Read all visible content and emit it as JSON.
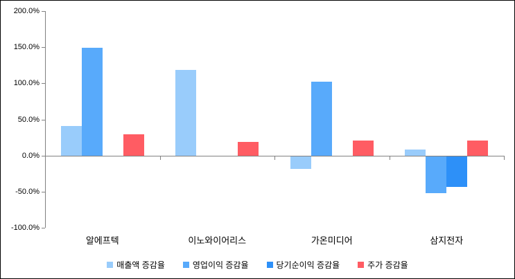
{
  "chart_data": {
    "type": "bar",
    "title": "",
    "xlabel": "",
    "ylabel": "",
    "categories": [
      "알에프텍",
      "이노와이어리스",
      "가온미디어",
      "삼지전자"
    ],
    "series": [
      {
        "name": "매출액 증감율",
        "color": "#99CCFB",
        "values": [
          41,
          119,
          -17,
          9
        ]
      },
      {
        "name": "영업이익 증감율",
        "color": "#58AAFB",
        "values": [
          150,
          0,
          103,
          -51
        ]
      },
      {
        "name": "당기순이익 증감율",
        "color": "#2D90F8",
        "values": [
          0,
          0,
          0,
          -42
        ]
      },
      {
        "name": "주가 증감율",
        "color": "#FF5C63",
        "values": [
          30,
          19,
          21,
          21
        ]
      }
    ],
    "y_ticks": [
      "200.0%",
      "150.0%",
      "100.0%",
      "50.0%",
      "0.0%",
      "-50.0%",
      "-100.0%"
    ],
    "ylim": [
      -100,
      200
    ],
    "y_unit": "percent",
    "grid": false,
    "legend_position": "bottom",
    "axis_color": "#808080",
    "background_color": "#FFFFFF",
    "border_color": "#000000"
  }
}
